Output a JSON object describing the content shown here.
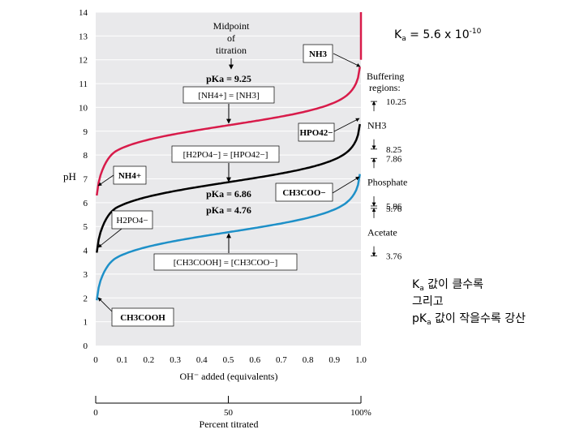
{
  "annotation_top": {
    "k": "K",
    "sub": "a",
    "mid": " = 5.6 x 10",
    "sup": "-10"
  },
  "annotation_side": {
    "line1": {
      "k": "K",
      "sub": "a",
      "rest": " 값이 클수록"
    },
    "line2": "그리고",
    "line3": {
      "p": "p",
      "k": "K",
      "sub": "a",
      "rest": " 값이 작을수록 강산"
    }
  },
  "chart_data": {
    "type": "line",
    "xlabel": "OH⁻ added (equivalents)",
    "ylabel": "pH",
    "xlim": [
      0,
      1.0
    ],
    "ylim": [
      0,
      14
    ],
    "x_ticks": [
      "0",
      "0.1",
      "0.2",
      "0.3",
      "0.4",
      "0.5",
      "0.6",
      "0.7",
      "0.8",
      "0.9",
      "1.0"
    ],
    "y_ticks": [
      "0",
      "1",
      "2",
      "3",
      "4",
      "5",
      "6",
      "7",
      "8",
      "9",
      "10",
      "11",
      "12",
      "13",
      "14"
    ],
    "secondary_axis": {
      "label": "Percent titrated",
      "ticks": [
        "0",
        "50",
        "100%"
      ]
    },
    "series": [
      {
        "pKa": 9.25,
        "color": "#d81b4a",
        "start_pH": 6.3,
        "end_pH": 11.7
      },
      {
        "pKa": 6.86,
        "color": "#000000",
        "start_pH": 3.9,
        "end_pH": 9.3
      },
      {
        "pKa": 4.76,
        "color": "#1e90c8",
        "start_pH": 1.9,
        "end_pH": 7.2
      }
    ],
    "labels": {
      "midpoint": [
        "Midpoint",
        "of",
        "titration"
      ],
      "pka_nh3": "pKa = 9.25",
      "nh4_eq_nh3": "[NH4+] = [NH3]",
      "h2po4_eq_hpo4": "[H2PO4−] = [HPO42−]",
      "pka_phos": "pKa = 6.86",
      "pka_acet": "pKa = 4.76",
      "ch3cooh_eq_ch3coo": "[CH3COOH] = [CH3COO−]",
      "box_nh3": "NH3",
      "box_nh4": "NH4+",
      "box_hpo4": "HPO42−",
      "box_h2po4": "H2PO4−",
      "box_ch3coo": "CH3COO−",
      "box_ch3cooh": "CH3COOH"
    },
    "buffering": {
      "title": [
        "Buffering",
        "regions:"
      ],
      "regions": [
        {
          "name": "NH3",
          "upper": "10.25",
          "lower": "8.25"
        },
        {
          "name": "Phosphate",
          "upper": "7.86",
          "lower": "5.86"
        },
        {
          "name": "Acetate",
          "upper": "5.76",
          "lower": "3.76"
        }
      ]
    }
  }
}
